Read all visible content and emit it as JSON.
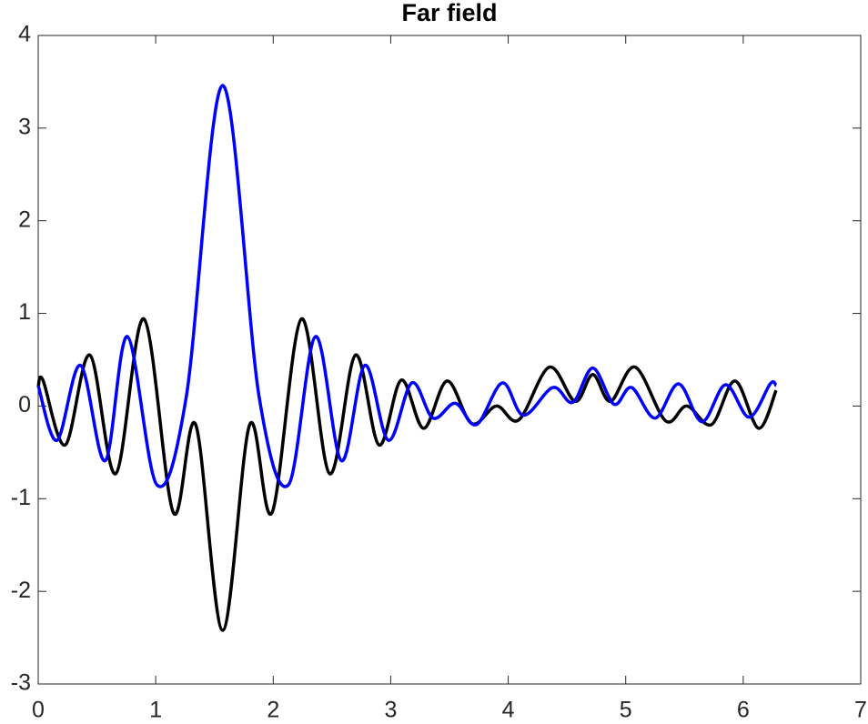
{
  "chart_data": {
    "type": "line",
    "title": "Far field",
    "xlim": [
      0,
      7
    ],
    "ylim": [
      -3,
      4
    ],
    "xticks": [
      0,
      1,
      2,
      3,
      4,
      5,
      6,
      7
    ],
    "yticks": [
      -3,
      -2,
      -1,
      0,
      1,
      2,
      3,
      4
    ],
    "box": true,
    "series": [
      {
        "color": "#000000",
        "x": [
          0,
          0.04,
          0.23,
          0.44,
          0.66,
          0.9,
          1.15,
          1.34,
          1.57,
          1.8,
          1.99,
          2.24,
          2.48,
          2.7,
          2.9,
          3.09,
          3.28,
          3.48,
          3.69,
          3.9,
          4.09,
          4.35,
          4.57,
          4.72,
          4.87,
          5.08,
          5.34,
          5.52,
          5.73,
          5.93,
          6.13,
          6.28
        ],
        "values": [
          0.2,
          0.28,
          -0.42,
          0.55,
          -0.73,
          0.94,
          -1.15,
          -0.2,
          -2.42,
          -0.2,
          -1.15,
          0.94,
          -0.73,
          0.55,
          -0.42,
          0.28,
          -0.24,
          0.27,
          -0.19,
          0.0,
          -0.15,
          0.42,
          0.05,
          0.34,
          0.05,
          0.42,
          -0.16,
          0.0,
          -0.2,
          0.27,
          -0.24,
          0.17
        ]
      },
      {
        "color": "#0000ff",
        "x": [
          0,
          0.16,
          0.36,
          0.57,
          0.76,
          1.01,
          1.26,
          1.57,
          1.88,
          2.13,
          2.36,
          2.58,
          2.78,
          2.98,
          3.18,
          3.36,
          3.55,
          3.73,
          3.95,
          4.13,
          4.38,
          4.55,
          4.72,
          4.9,
          5.05,
          5.25,
          5.45,
          5.65,
          5.85,
          6.05,
          6.23,
          6.28
        ],
        "values": [
          0.22,
          -0.37,
          0.44,
          -0.59,
          0.75,
          -0.85,
          0.1,
          3.46,
          0.1,
          -0.85,
          0.75,
          -0.59,
          0.44,
          -0.37,
          0.25,
          -0.13,
          0.03,
          -0.2,
          0.25,
          -0.1,
          0.2,
          0.04,
          0.41,
          0.02,
          0.2,
          -0.13,
          0.24,
          -0.17,
          0.23,
          -0.12,
          0.24,
          0.22
        ]
      }
    ]
  }
}
